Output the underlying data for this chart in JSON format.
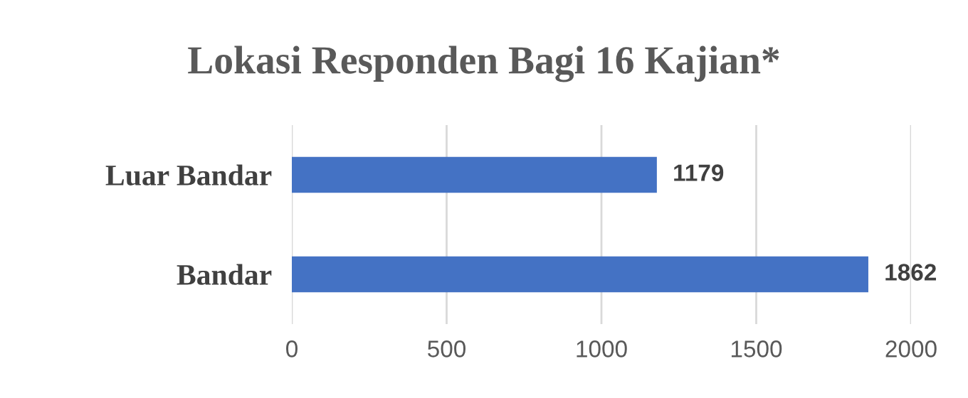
{
  "chart_data": {
    "type": "bar",
    "orientation": "horizontal",
    "title": "Lokasi Responden Bagi 16 Kajian*",
    "categories": [
      "Luar Bandar",
      "Bandar"
    ],
    "values": [
      1179,
      1862
    ],
    "color": "#4472c4",
    "xlim": [
      0,
      2000
    ],
    "xticks": [
      0,
      500,
      1000,
      1500,
      2000
    ],
    "grid": "x",
    "data_labels": true
  }
}
